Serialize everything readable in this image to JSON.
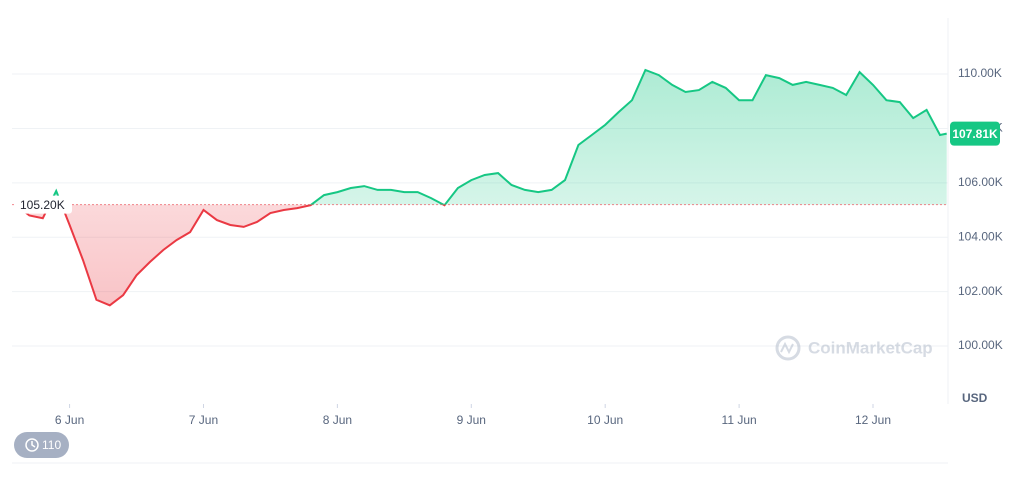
{
  "chart_data": {
    "type": "line",
    "x": [
      5.6,
      5.7,
      5.8,
      5.9,
      6.0,
      6.1,
      6.2,
      6.3,
      6.4,
      6.5,
      6.6,
      6.7,
      6.8,
      6.9,
      7.0,
      7.1,
      7.2,
      7.3,
      7.4,
      7.5,
      7.6,
      7.7,
      7.8,
      7.9,
      8.0,
      8.1,
      8.2,
      8.3,
      8.4,
      8.5,
      8.6,
      8.7,
      8.8,
      8.9,
      9.0,
      9.1,
      9.2,
      9.3,
      9.4,
      9.5,
      9.6,
      9.7,
      9.8,
      9.9,
      10.0,
      10.1,
      10.2,
      10.3,
      10.4,
      10.5,
      10.6,
      10.7,
      10.8,
      10.9,
      11.0,
      11.1,
      11.2,
      11.3,
      11.4,
      11.5,
      11.6,
      11.7,
      11.8,
      11.9,
      12.0,
      12.1,
      12.2,
      12.3,
      12.4,
      12.5,
      12.55
    ],
    "values": [
      105180,
      104800,
      104700,
      105700,
      104450,
      103160,
      101700,
      101500,
      101870,
      102600,
      103090,
      103530,
      103900,
      104190,
      105000,
      104630,
      104450,
      104380,
      104560,
      104890,
      105000,
      105070,
      105180,
      105550,
      105660,
      105810,
      105880,
      105740,
      105740,
      105660,
      105660,
      105440,
      105180,
      105810,
      106100,
      106290,
      106360,
      105920,
      105740,
      105660,
      105740,
      106100,
      107390,
      107760,
      108130,
      108600,
      109040,
      110150,
      109960,
      109600,
      109340,
      109410,
      109710,
      109490,
      109040,
      109040,
      109960,
      109850,
      109600,
      109710,
      109600,
      109490,
      109230,
      110070,
      109600,
      109040,
      108970,
      108380,
      108680,
      107760,
      107810
    ],
    "xlim": [
      5.57,
      12.56
    ],
    "xticks": [
      {
        "value": 6,
        "label": "6 Jun"
      },
      {
        "value": 7,
        "label": "7 Jun"
      },
      {
        "value": 8,
        "label": "8 Jun"
      },
      {
        "value": 9,
        "label": "9 Jun"
      },
      {
        "value": 10,
        "label": "10 Jun"
      },
      {
        "value": 11,
        "label": "11 Jun"
      },
      {
        "value": 12,
        "label": "12 Jun"
      }
    ],
    "ylim": [
      97870,
      112060
    ],
    "yticks": [
      {
        "value": 100000,
        "label": "100.00K"
      },
      {
        "value": 102000,
        "label": "102.00K"
      },
      {
        "value": 104000,
        "label": "104.00K"
      },
      {
        "value": 106000,
        "label": "106.00K"
      },
      {
        "value": 108000,
        "label": "108.00K"
      },
      {
        "value": 110000,
        "label": "110.00K"
      }
    ],
    "baseline": {
      "value": 105200,
      "label": "105.20K"
    },
    "last_price": {
      "value": 107810,
      "label": "107.81K"
    },
    "up_color": "#16c784",
    "down_color": "#ea3943",
    "grid": true,
    "y_unit": "USD",
    "watermark": "CoinMarketCap",
    "badge": "110"
  }
}
